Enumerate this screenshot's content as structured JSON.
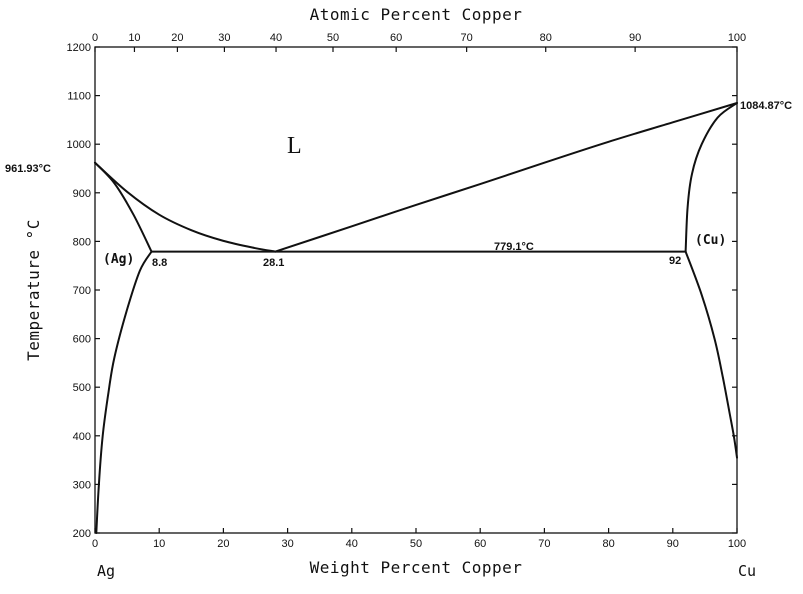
{
  "chart_data": {
    "type": "line",
    "xlabel_bottom": "Weight Percent Copper",
    "xlabel_top": "Atomic Percent Copper",
    "ylabel": "Temperature °C",
    "xlim": [
      0,
      100
    ],
    "ylim": [
      200,
      1200
    ],
    "x_ticks_bottom": [
      0,
      10,
      20,
      30,
      40,
      50,
      60,
      70,
      80,
      90,
      100
    ],
    "x_ticks_top": [
      0,
      10,
      20,
      30,
      40,
      50,
      60,
      70,
      80,
      90,
      100
    ],
    "y_ticks": [
      200,
      300,
      400,
      500,
      600,
      700,
      800,
      900,
      1000,
      1100,
      1200
    ],
    "end_labels": {
      "left": "Ag",
      "right": "Cu"
    },
    "phase_labels": {
      "liquid": "L",
      "ag_solid": "(Ag)",
      "cu_solid": "(Cu)"
    },
    "annotations": {
      "ag_melting": "961.93°C",
      "cu_melting": "1084.87°C",
      "eutectic_temp": "779.1°C",
      "ag_max_solubility": "8.8",
      "eutectic_comp": "28.1",
      "cu_max_solubility": "92"
    },
    "series": [
      {
        "values": [
          [
            0,
            961.93
          ],
          [
            5,
            902
          ],
          [
            10,
            855
          ],
          [
            15,
            823
          ],
          [
            20,
            801
          ],
          [
            25,
            786
          ],
          [
            28.1,
            779.1
          ]
        ]
      },
      {
        "values": [
          [
            28.1,
            779.1
          ],
          [
            40,
            831
          ],
          [
            50,
            875
          ],
          [
            60,
            918
          ],
          [
            70,
            962
          ],
          [
            80,
            1005
          ],
          [
            90,
            1045
          ],
          [
            100,
            1084.87
          ]
        ]
      },
      {
        "values": [
          [
            0,
            961.93
          ],
          [
            3,
            920
          ],
          [
            6,
            855
          ],
          [
            8.8,
            779.1
          ]
        ]
      },
      {
        "values": [
          [
            100,
            1084.87
          ],
          [
            97,
            1055
          ],
          [
            94.5,
            1000
          ],
          [
            93,
            940
          ],
          [
            92.3,
            870
          ],
          [
            92,
            779.1
          ]
        ]
      },
      {
        "values": [
          [
            8.8,
            779.1
          ],
          [
            28.1,
            779.1
          ],
          [
            92,
            779.1
          ]
        ]
      },
      {
        "values": [
          [
            8.8,
            779.1
          ],
          [
            7,
            740
          ],
          [
            5,
            660
          ],
          [
            3,
            560
          ],
          [
            2,
            480
          ],
          [
            1.2,
            400
          ],
          [
            0.6,
            300
          ],
          [
            0.2,
            200
          ]
        ]
      },
      {
        "values": [
          [
            92,
            779.1
          ],
          [
            94.5,
            690
          ],
          [
            96.5,
            600
          ],
          [
            97.8,
            520
          ],
          [
            98.8,
            450
          ],
          [
            99.5,
            400
          ],
          [
            100,
            355
          ]
        ]
      }
    ]
  }
}
